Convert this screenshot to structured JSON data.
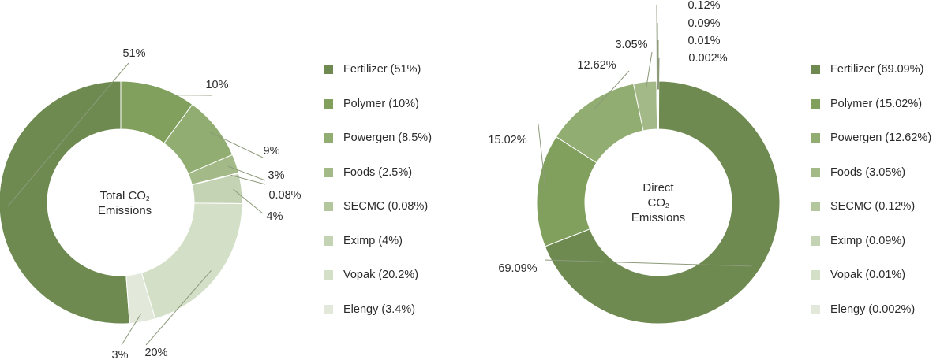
{
  "chart_data": [
    {
      "type": "pie",
      "center_label": {
        "line1": "Total CO",
        "sub": "2",
        "line2": "Emissions"
      },
      "slices": [
        {
          "name": "Fertilizer",
          "value": 51,
          "label": "51%",
          "legend": "Fertilizer (51%)",
          "color": "#6e8a50"
        },
        {
          "name": "Polymer",
          "value": 10,
          "label": "10%",
          "legend": "Polymer (10%)",
          "color": "#81a05e"
        },
        {
          "name": "Powergen",
          "value": 8.5,
          "label": "9%",
          "legend": "Powergen (8.5%)",
          "color": "#92ad72"
        },
        {
          "name": "Foods",
          "value": 2.5,
          "label": "3%",
          "legend": "Foods (2.5%)",
          "color": "#a3ba88"
        },
        {
          "name": "SECMC",
          "value": 0.08,
          "label": "0.08%",
          "legend": "SECMC (0.08%)",
          "color": "#b3c69d"
        },
        {
          "name": "Eximp",
          "value": 4,
          "label": "4%",
          "legend": "Eximp (4%)",
          "color": "#c4d3b3"
        },
        {
          "name": "Vopak",
          "value": 20.2,
          "label": "20%",
          "legend": "Vopak (20.2%)",
          "color": "#d4dfc7"
        },
        {
          "name": "Elengy",
          "value": 3.4,
          "label": "3%",
          "legend": "Elengy (3.4%)",
          "color": "#e2e9da"
        }
      ]
    },
    {
      "type": "pie",
      "center_label": {
        "line1": "Direct",
        "line2": "CO",
        "sub": "2",
        "line3": "Emissions"
      },
      "slices": [
        {
          "name": "Fertilizer",
          "value": 69.09,
          "label": "69.09%",
          "legend": "Fertilizer (69.09%)",
          "color": "#6e8a50"
        },
        {
          "name": "Polymer",
          "value": 15.02,
          "label": "15.02%",
          "legend": "Polymer (15.02%)",
          "color": "#81a05e"
        },
        {
          "name": "Powergen",
          "value": 12.62,
          "label": "12.62%",
          "legend": "Powergen (12.62%)",
          "color": "#92ad72"
        },
        {
          "name": "Foods",
          "value": 3.05,
          "label": "3.05%",
          "legend": "Foods (3.05%)",
          "color": "#a3ba88"
        },
        {
          "name": "SECMC",
          "value": 0.12,
          "label": "0.12%",
          "legend": "SECMC (0.12%)",
          "color": "#b3c69d"
        },
        {
          "name": "Eximp",
          "value": 0.09,
          "label": "0.09%",
          "legend": "Eximp (0.09%)",
          "color": "#c4d3b3"
        },
        {
          "name": "Vopak",
          "value": 0.01,
          "label": "0.01%",
          "legend": "Vopak (0.01%)",
          "color": "#d4dfc7"
        },
        {
          "name": "Elengy",
          "value": 0.002,
          "label": "0.002%",
          "legend": "Elengy (0.002%)",
          "color": "#e2e9da"
        }
      ]
    }
  ]
}
